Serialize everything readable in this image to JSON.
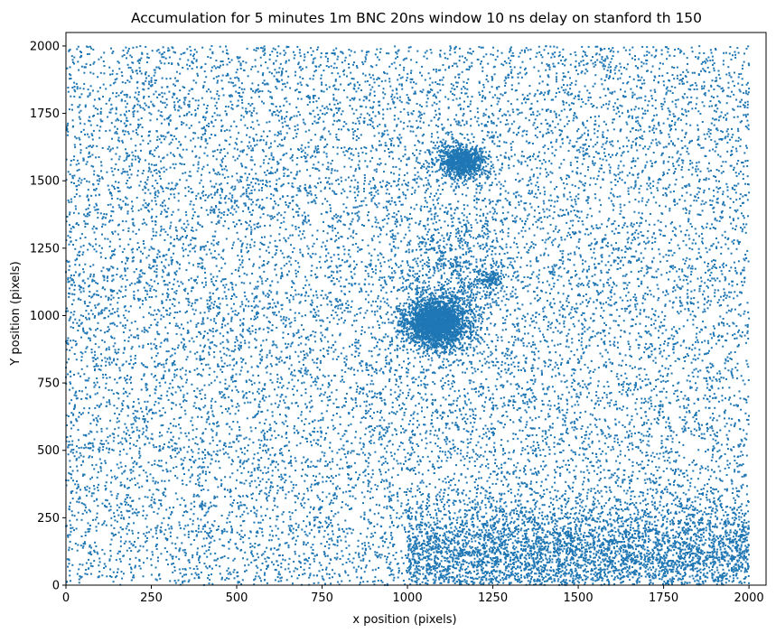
{
  "chart_data": {
    "type": "scatter",
    "title": "Accumulation for 5 minutes 1m BNC 20ns window 10 ns delay on stanford th 150",
    "xlabel": "x position (pixels)",
    "ylabel": "Y position (pixels)",
    "xlim": [
      0,
      2050
    ],
    "ylim": [
      0,
      2050
    ],
    "xticks": [
      0,
      250,
      500,
      750,
      1000,
      1250,
      1500,
      1750,
      2000
    ],
    "yticks": [
      0,
      250,
      500,
      750,
      1000,
      1250,
      1500,
      1750,
      2000
    ],
    "marker_color": "#1f77b4",
    "background_points": {
      "x_range": [
        0,
        2000
      ],
      "y_range": [
        0,
        2000
      ],
      "uniform_count": 15000,
      "bottom_band": {
        "x_range": [
          1000,
          2000
        ],
        "y_center": 120,
        "y_spread": 100,
        "count": 3500
      }
    },
    "clusters": [
      {
        "center": [
          1085,
          970
        ],
        "spread": [
          45,
          45
        ],
        "count": 2500
      },
      {
        "center": [
          1160,
          1570
        ],
        "spread": [
          35,
          30
        ],
        "count": 900
      },
      {
        "center": [
          1150,
          1150
        ],
        "spread": [
          80,
          120
        ],
        "count": 500
      },
      {
        "center": [
          1240,
          1135
        ],
        "spread": [
          20,
          15
        ],
        "count": 120
      }
    ]
  }
}
